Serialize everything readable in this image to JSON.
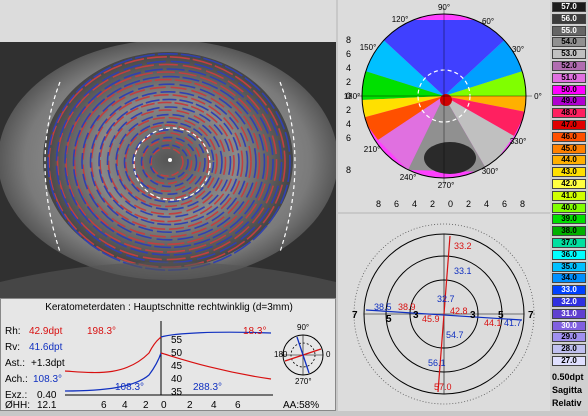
{
  "keratometer": {
    "title": "Keratometerdaten : Hauptschnitte rechtwinklig (d=3mm)",
    "rh_label": "Rh:",
    "rh_value": "42.9dpt",
    "rh_axis": "198.3°",
    "rv_label": "Rv:",
    "rv_value": "41.6dpt",
    "rv_axis_right": "18.3°",
    "ast_label": "Ast.:",
    "ast_value": "+1.3dpt",
    "ach_label": "Ach.:",
    "ach_value": "108.3°",
    "exz_label": "Exz.:",
    "exz_value": "0.40",
    "ohh_label": "ØHH:",
    "ohh_value": "12.1",
    "curve_blue_left_label": "108.3°",
    "curve_blue_right_label": "288.3°",
    "y_ticks": [
      "55",
      "50",
      "45",
      "40",
      "35"
    ],
    "x_ticks_left": [
      "6",
      "4",
      "2",
      "0"
    ],
    "x_ticks_right": [
      "2",
      "4",
      "6"
    ],
    "aa_label": "AA:58%",
    "mini_axis_top": "90°",
    "mini_axis_bottom": "270°",
    "mini_axis_left": "180",
    "mini_axis_right": "0"
  },
  "topography": {
    "angle_labels": [
      "90°",
      "60°",
      "30°",
      "0°",
      "330°",
      "300°",
      "270°",
      "240°",
      "210°",
      "180°",
      "150°",
      "120°"
    ],
    "y_axis_labels": [
      "8",
      "6",
      "4",
      "2",
      "0",
      "2",
      "4",
      "6",
      "8"
    ],
    "x_axis_labels": [
      "8",
      "6",
      "4",
      "2",
      "0",
      "2",
      "4",
      "6",
      "8"
    ]
  },
  "power_map": {
    "values": {
      "outer_top": "33.2",
      "inner_top": "33.1",
      "center_top": "32.7",
      "left_outer": "38.5",
      "left_inner": "38.9",
      "center_left": "45.9",
      "center_right": "42.8",
      "right_inner": "44.1",
      "right_outer": "41.7",
      "center_bottom": "54.7",
      "inner_bottom": "56.1",
      "outer_bottom": "57.0"
    },
    "mm_labels": [
      "7",
      "5",
      "3",
      "3",
      "5",
      "7"
    ]
  },
  "scale": {
    "values": [
      "57.0",
      "56.0",
      "55.0",
      "54.0",
      "53.0",
      "52.0",
      "51.0",
      "50.0",
      "49.0",
      "48.0",
      "47.0",
      "46.0",
      "45.0",
      "44.0",
      "43.0",
      "42.0",
      "41.0",
      "40.0",
      "39.0",
      "38.0",
      "37.0",
      "36.0",
      "35.0",
      "34.0",
      "33.0",
      "32.0",
      "31.0",
      "30.0",
      "29.0",
      "28.0",
      "27.0"
    ],
    "colors": [
      "#1a1a1a",
      "#3c3c3c",
      "#666666",
      "#909090",
      "#c0c0c0",
      "#b06cb0",
      "#e070e0",
      "#ff00ff",
      "#b000d0",
      "#ff2060",
      "#e00000",
      "#ff5000",
      "#ff8000",
      "#ffb000",
      "#ffe000",
      "#ffff40",
      "#d0ff00",
      "#80ff00",
      "#00e000",
      "#00b000",
      "#00e0a0",
      "#00ffff",
      "#00c0ff",
      "#0090ff",
      "#0040ff",
      "#3030e0",
      "#6040d0",
      "#8060e0",
      "#a090f0",
      "#c0c0f0",
      "#e0e0ff"
    ],
    "step_label": "0.50dpt",
    "mode1": "Sagitta",
    "mode2": "Relativ"
  }
}
